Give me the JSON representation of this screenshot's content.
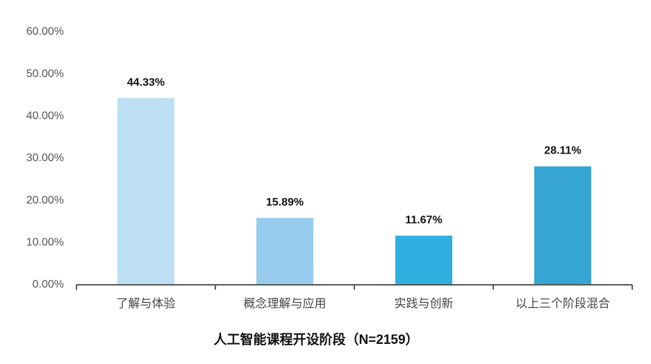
{
  "chart_data": {
    "type": "bar",
    "x_label": "人工智能课程开设阶段（N=2159）",
    "categories": [
      "了解与体验",
      "概念理解与应用",
      "实践与创新",
      "以上三个阶段混合"
    ],
    "values": [
      44.33,
      15.89,
      11.67,
      28.11
    ],
    "value_labels": [
      "44.33%",
      "15.89%",
      "11.67%",
      "28.11%"
    ],
    "colors": [
      "#bddff4",
      "#97ccee",
      "#2fb0e1",
      "#35a6d3"
    ],
    "ylim": [
      0,
      60
    ],
    "yticks": [
      {
        "value": 0,
        "label": "0.00%"
      },
      {
        "value": 10,
        "label": "10.00%"
      },
      {
        "value": 20,
        "label": "20.00%"
      },
      {
        "value": 30,
        "label": "30.00%"
      },
      {
        "value": 40,
        "label": "40.00%"
      },
      {
        "value": 50,
        "label": "50.00%"
      },
      {
        "value": 60,
        "label": "60.00%"
      }
    ],
    "grid": false
  }
}
